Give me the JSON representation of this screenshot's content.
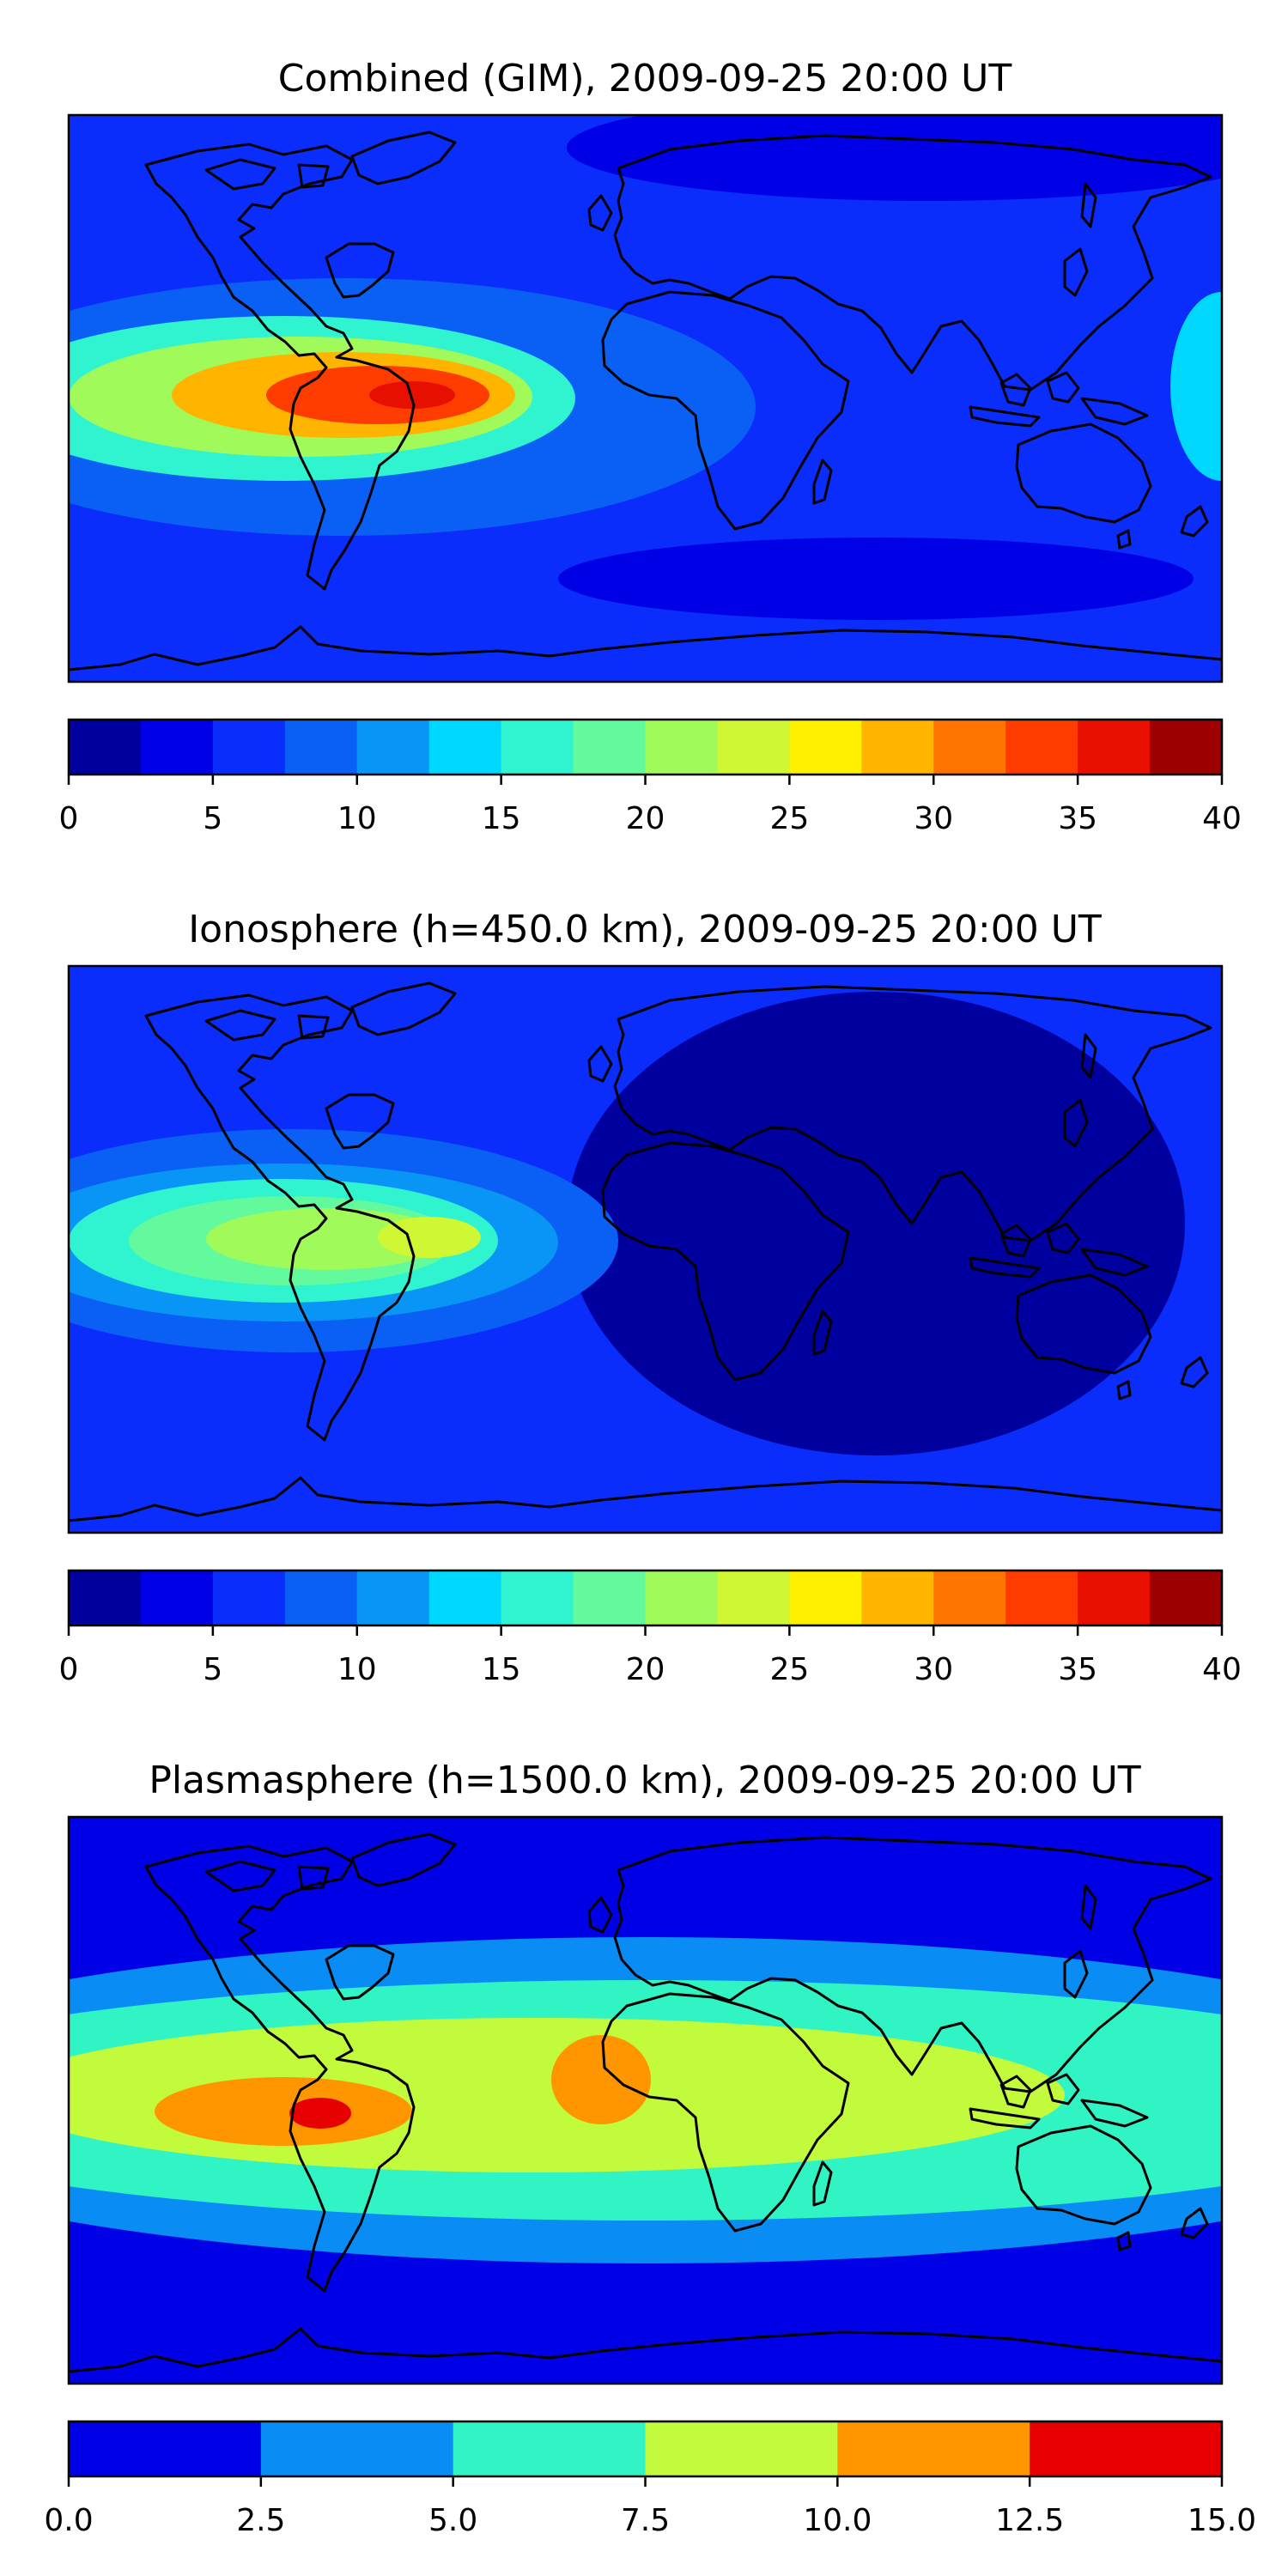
{
  "chart_data": [
    {
      "type": "heatmap",
      "title": "Combined (GIM), 2009-09-25 20:00 UT",
      "projection": "plate-carree world map with coastlines",
      "colorbar": {
        "levels": [
          0,
          2.5,
          5,
          7.5,
          10,
          12.5,
          15,
          17.5,
          20,
          22.5,
          25,
          27.5,
          30,
          32.5,
          35,
          37.5,
          40
        ],
        "colors": [
          "#00009e",
          "#0000e6",
          "#0a2dfb",
          "#0a60f5",
          "#0995f5",
          "#00d7ff",
          "#30f4d0",
          "#62fa9c",
          "#a0fa5a",
          "#d0f733",
          "#fff000",
          "#ffb400",
          "#ff7400",
          "#ff3c00",
          "#e60f00",
          "#9c0000"
        ],
        "ticks": [
          0,
          5,
          10,
          15,
          20,
          25,
          30,
          35,
          40
        ],
        "tick_labels": [
          "0",
          "5",
          "10",
          "15",
          "20",
          "25",
          "30",
          "35",
          "40"
        ]
      },
      "features": [
        {
          "name": "background",
          "value": 6
        },
        {
          "name": "north-polar-region",
          "value": 5
        },
        {
          "name": "eurasia-low",
          "value": 4
        },
        {
          "name": "southern-ocean-low",
          "value": 3
        },
        {
          "name": "low-latitude-band",
          "value": 9
        },
        {
          "name": "western-pacific-enhancement",
          "value": 13
        },
        {
          "name": "equatorial-anomaly-outer",
          "value": 16
        },
        {
          "name": "equatorial-anomaly-mid",
          "value": 21
        },
        {
          "name": "equatorial-anomaly-inner",
          "value": 28
        },
        {
          "name": "equatorial-anomaly-peak",
          "value": 33
        },
        {
          "name": "south-america-maximum",
          "value": 36
        }
      ]
    },
    {
      "type": "heatmap",
      "title": "Ionosphere  (h=450.0 km), 2009-09-25 20:00 UT",
      "projection": "plate-carree world map with coastlines",
      "colorbar": {
        "levels": [
          0,
          2.5,
          5,
          7.5,
          10,
          12.5,
          15,
          17.5,
          20,
          22.5,
          25,
          27.5,
          30,
          32.5,
          35,
          37.5,
          40
        ],
        "colors": [
          "#00009e",
          "#0000e6",
          "#0a2dfb",
          "#0a60f5",
          "#0995f5",
          "#00d7ff",
          "#30f4d0",
          "#62fa9c",
          "#a0fa5a",
          "#d0f733",
          "#fff000",
          "#ffb400",
          "#ff7400",
          "#ff3c00",
          "#e60f00",
          "#9c0000"
        ],
        "ticks": [
          0,
          5,
          10,
          15,
          20,
          25,
          30,
          35,
          40
        ],
        "tick_labels": [
          "0",
          "5",
          "10",
          "15",
          "20",
          "25",
          "30",
          "35",
          "40"
        ]
      },
      "features": [
        {
          "name": "background",
          "value": 6
        },
        {
          "name": "night-side-low",
          "value": 2
        },
        {
          "name": "americas-moderate",
          "value": 9
        },
        {
          "name": "americas-enhanced",
          "value": 12
        },
        {
          "name": "equatorial-anomaly-outer",
          "value": 16
        },
        {
          "name": "equatorial-anomaly-mid",
          "value": 19
        },
        {
          "name": "equatorial-anomaly-inner",
          "value": 21
        },
        {
          "name": "equatorial-anomaly-peak",
          "value": 24
        }
      ]
    },
    {
      "type": "heatmap",
      "title": "Plasmasphere (h=1500.0 km), 2009-09-25 20:00 UT",
      "projection": "plate-carree world map with coastlines",
      "colorbar": {
        "levels": [
          0.0,
          2.5,
          5.0,
          7.5,
          10.0,
          12.5,
          15.0
        ],
        "colors": [
          "#0000e6",
          "#0a8cf5",
          "#30f4c4",
          "#c2fa3c",
          "#ff9600",
          "#e60000"
        ],
        "ticks": [
          0.0,
          2.5,
          5.0,
          7.5,
          10.0,
          12.5,
          15.0
        ],
        "tick_labels": [
          "0.0",
          "2.5",
          "5.0",
          "7.5",
          "10.0",
          "12.5",
          "15.0"
        ]
      },
      "features": [
        {
          "name": "high-latitude-background",
          "value": 1.5
        },
        {
          "name": "mid-latitude-band",
          "value": 4
        },
        {
          "name": "low-latitude-band",
          "value": 6
        },
        {
          "name": "equatorial-band",
          "value": 8.5
        },
        {
          "name": "pacific-enhancement",
          "value": 11
        },
        {
          "name": "africa-enhancement",
          "value": 11
        },
        {
          "name": "pacific-maximum",
          "value": 13.5
        }
      ]
    }
  ]
}
